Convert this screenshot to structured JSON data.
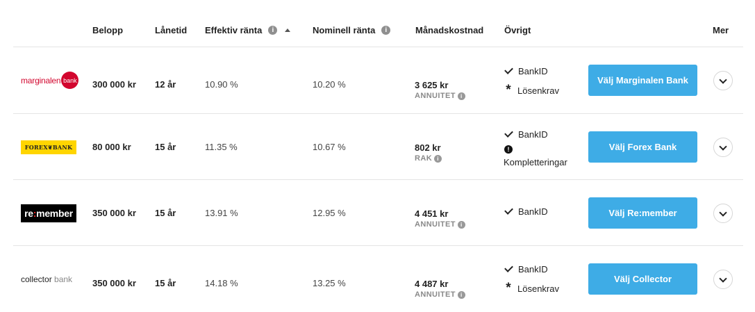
{
  "header": {
    "amount": "Belopp",
    "term": "Lånetid",
    "effective_rate": "Effektiv ränta",
    "nominal_rate": "Nominell ränta",
    "monthly_cost": "Månadskostnad",
    "misc": "Övrigt",
    "more": "Mer"
  },
  "rows": [
    {
      "logo_text": "marginalen",
      "logo_badge": "bank",
      "amount": "300 000 kr",
      "term": "12 år",
      "effective_rate": "10.90 %",
      "nominal_rate": "10.20 %",
      "monthly": "3 625 kr",
      "monthly_type": "ANNUITET",
      "misc": [
        "BankID",
        "Lösenkrav"
      ],
      "button": "Välj Marginalen Bank"
    },
    {
      "logo_text": "FOREX❦BANK",
      "amount": "80 000 kr",
      "term": "15 år",
      "effective_rate": "11.35 %",
      "nominal_rate": "10.67 %",
      "monthly": "802 kr",
      "monthly_type": "RAK",
      "misc": [
        "BankID",
        "Kompletteringar"
      ],
      "button": "Välj Forex Bank"
    },
    {
      "logo_prefix": "re",
      "logo_accent": ":",
      "logo_suffix": "member",
      "amount": "350 000 kr",
      "term": "15 år",
      "effective_rate": "13.91 %",
      "nominal_rate": "12.95 %",
      "monthly": "4 451 kr",
      "monthly_type": "ANNUITET",
      "misc": [
        "BankID"
      ],
      "button": "Välj Re:member"
    },
    {
      "logo_text": "collector",
      "logo_suffix": "bank",
      "amount": "350 000 kr",
      "term": "15 år",
      "effective_rate": "14.18 %",
      "nominal_rate": "13.25 %",
      "monthly": "4 487 kr",
      "monthly_type": "ANNUITET",
      "misc": [
        "BankID",
        "Lösenkrav"
      ],
      "button": "Välj Collector"
    }
  ],
  "icons": {
    "info": "info-icon",
    "sort": "sort-ascending-icon",
    "check": "check-icon",
    "password": "asterisk-icon",
    "warning": "exclamation-circle-icon",
    "expand": "chevron-down-icon"
  },
  "colors": {
    "button": "#3eace6",
    "marginalen": "#d2062e",
    "forex": "#ffd500",
    "remember_bg": "#000000"
  }
}
